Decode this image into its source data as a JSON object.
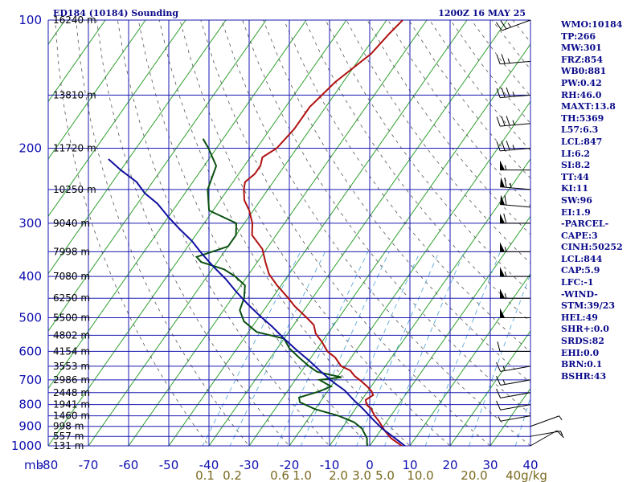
{
  "header": {
    "station": "ED184 (10184) Sounding",
    "time": "1200Z 16 MAY 25"
  },
  "chart_data": {
    "type": "line",
    "title": "ED184 (10184) Sounding",
    "subtitle": "1200Z 16 MAY 25",
    "xlabel": "",
    "ylabel": "mb",
    "xlim": [
      -80,
      40
    ],
    "ylim": [
      1000,
      100
    ],
    "y_scale": "log",
    "x_ticks": [
      "-80",
      "-70",
      "-60",
      "-50",
      "-40",
      "-30",
      "-20",
      "-10",
      "0",
      "10",
      "20",
      "30",
      "40"
    ],
    "pressure_levels": [
      {
        "p": 100,
        "label": "100",
        "height": "16240 m"
      },
      {
        "p": 150,
        "label": "",
        "height": "13810 m"
      },
      {
        "p": 200,
        "label": "200",
        "height": "11720 m"
      },
      {
        "p": 250,
        "label": "",
        "height": "10250 m"
      },
      {
        "p": 300,
        "label": "300",
        "height": "9040 m"
      },
      {
        "p": 350,
        "label": "",
        "height": "7998 m"
      },
      {
        "p": 400,
        "label": "400",
        "height": "7080 m"
      },
      {
        "p": 450,
        "label": "",
        "height": "6250 m"
      },
      {
        "p": 500,
        "label": "500",
        "height": "5500 m"
      },
      {
        "p": 550,
        "label": "",
        "height": "4802 m"
      },
      {
        "p": 600,
        "label": "600",
        "height": "4154 m"
      },
      {
        "p": 650,
        "label": "",
        "height": "3553 m"
      },
      {
        "p": 700,
        "label": "700",
        "height": "2986 m"
      },
      {
        "p": 750,
        "label": "",
        "height": "2448 m"
      },
      {
        "p": 800,
        "label": "800",
        "height": "1941 m"
      },
      {
        "p": 850,
        "label": "",
        "height": "1460 m"
      },
      {
        "p": 900,
        "label": "900",
        "height": "998 m"
      },
      {
        "p": 950,
        "label": "",
        "height": "557 m"
      },
      {
        "p": 1000,
        "label": "1000",
        "height": "131 m"
      }
    ],
    "mixing_ratio_labels": [
      "0.1",
      "0.2",
      "0.6",
      "1.0",
      "2.0",
      "3.0",
      "5.0",
      "10.0",
      "20.0",
      "40g/kg"
    ],
    "series": [
      {
        "name": "Temperature",
        "color": "#b01010",
        "points": [
          [
            9.2,
            1014
          ],
          [
            7,
            990
          ],
          [
            4,
            960
          ],
          [
            1,
            920
          ],
          [
            -2,
            875
          ],
          [
            -4,
            850
          ],
          [
            -6,
            820
          ],
          [
            -8,
            800
          ],
          [
            -9,
            780
          ],
          [
            -8,
            760
          ],
          [
            -9,
            745
          ],
          [
            -11,
            725
          ],
          [
            -14,
            700
          ],
          [
            -16,
            685
          ],
          [
            -18,
            665
          ],
          [
            -21,
            650
          ],
          [
            -24,
            620
          ],
          [
            -27,
            600
          ],
          [
            -30,
            570
          ],
          [
            -33,
            545
          ],
          [
            -35,
            520
          ],
          [
            -38,
            500
          ],
          [
            -43,
            470
          ],
          [
            -46,
            450
          ],
          [
            -51,
            420
          ],
          [
            -55,
            395
          ],
          [
            -58,
            370
          ],
          [
            -61,
            345
          ],
          [
            -66,
            320
          ],
          [
            -68,
            300
          ],
          [
            -71,
            280
          ],
          [
            -74,
            265
          ],
          [
            -76,
            250
          ],
          [
            -77,
            240
          ],
          [
            -76,
            230
          ],
          [
            -76,
            220
          ],
          [
            -77,
            210
          ],
          [
            -75,
            200
          ],
          [
            -74,
            180
          ],
          [
            -74,
            160
          ],
          [
            -72,
            140
          ],
          [
            -68,
            120
          ],
          [
            -67,
            108
          ],
          [
            -66,
            100
          ]
        ]
      },
      {
        "name": "Dewpoint",
        "color": "#0a5010",
        "points": [
          [
            0,
            1014
          ],
          [
            -1,
            990
          ],
          [
            -2,
            960
          ],
          [
            -5,
            910
          ],
          [
            -8,
            880
          ],
          [
            -13,
            850
          ],
          [
            -20,
            820
          ],
          [
            -25,
            790
          ],
          [
            -26,
            770
          ],
          [
            -22,
            745
          ],
          [
            -20,
            725
          ],
          [
            -24,
            700
          ],
          [
            -19,
            690
          ],
          [
            -26,
            670
          ],
          [
            -29,
            650
          ],
          [
            -33,
            620
          ],
          [
            -37,
            590
          ],
          [
            -40,
            560
          ],
          [
            -48,
            540
          ],
          [
            -53,
            510
          ],
          [
            -56,
            480
          ],
          [
            -57,
            450
          ],
          [
            -59,
            420
          ],
          [
            -63,
            400
          ],
          [
            -67,
            385
          ],
          [
            -74,
            370
          ],
          [
            -76,
            360
          ],
          [
            -70,
            340
          ],
          [
            -70,
            320
          ],
          [
            -72,
            300
          ],
          [
            -81,
            280
          ],
          [
            -85,
            250
          ],
          [
            -87,
            220
          ],
          [
            -92,
            200
          ],
          [
            -95,
            190
          ]
        ]
      },
      {
        "name": "Parcel",
        "color": "#1010a0",
        "points": [
          [
            10,
            1014
          ],
          [
            5,
            960
          ],
          [
            0,
            910
          ],
          [
            -4,
            865
          ],
          [
            -8,
            820
          ],
          [
            -12,
            780
          ],
          [
            -16,
            740
          ],
          [
            -20,
            710
          ],
          [
            -25,
            670
          ],
          [
            -30,
            630
          ],
          [
            -35,
            595
          ],
          [
            -40,
            560
          ],
          [
            -45,
            525
          ],
          [
            -50,
            495
          ],
          [
            -55,
            465
          ],
          [
            -60,
            435
          ],
          [
            -65,
            405
          ],
          [
            -70,
            380
          ],
          [
            -75,
            355
          ],
          [
            -80,
            330
          ],
          [
            -85,
            310
          ],
          [
            -90,
            290
          ],
          [
            -95,
            270
          ],
          [
            -100,
            255
          ],
          [
            -104,
            240
          ],
          [
            -110,
            225
          ],
          [
            -115,
            212
          ]
        ]
      }
    ],
    "wind_barbs": [
      {
        "p": 1000,
        "dir": 60,
        "spd": 10
      },
      {
        "p": 950,
        "dir": 80,
        "spd": 5
      },
      {
        "p": 900,
        "dir": 70,
        "spd": 5
      },
      {
        "p": 850,
        "dir": 260,
        "spd": 5
      },
      {
        "p": 800,
        "dir": 260,
        "spd": 10
      },
      {
        "p": 750,
        "dir": 260,
        "spd": 10
      },
      {
        "p": 700,
        "dir": 260,
        "spd": 15
      },
      {
        "p": 650,
        "dir": 260,
        "spd": 15
      },
      {
        "p": 600,
        "dir": 270,
        "spd": 10
      },
      {
        "p": 500,
        "dir": 270,
        "spd": 50
      },
      {
        "p": 450,
        "dir": 270,
        "spd": 55
      },
      {
        "p": 400,
        "dir": 270,
        "spd": 55
      },
      {
        "p": 350,
        "dir": 270,
        "spd": 55
      },
      {
        "p": 300,
        "dir": 270,
        "spd": 60
      },
      {
        "p": 275,
        "dir": 275,
        "spd": 60
      },
      {
        "p": 250,
        "dir": 275,
        "spd": 65
      },
      {
        "p": 225,
        "dir": 270,
        "spd": 55
      },
      {
        "p": 200,
        "dir": 265,
        "spd": 35
      },
      {
        "p": 175,
        "dir": 265,
        "spd": 35
      },
      {
        "p": 150,
        "dir": 265,
        "spd": 35
      },
      {
        "p": 125,
        "dir": 265,
        "spd": 25
      },
      {
        "p": 100,
        "dir": 250,
        "spd": 25
      }
    ]
  },
  "stats": [
    "WMO:10184",
    "TP:266",
    "MW:301",
    "FRZ:854",
    "WB0:881",
    "PW:0.42",
    "RH:46.0",
    "MAXT:13.8",
    "TH:5369",
    "L57:6.3",
    "LCL:847",
    "LI:6.2",
    "SI:8.2",
    "TT:44",
    "KI:11",
    "SW:96",
    "EI:1.9",
    "-PARCEL-",
    "CAPE:3",
    "CINH:50252",
    "LCL:844",
    "CAP:5.9",
    "LFC:-1",
    "-WIND-",
    "STM:39/23",
    "HEL:49",
    "SHR+:0.0",
    "SRDS:82",
    "EHI:0.0",
    "BRN:0.1",
    "BSHR:43"
  ]
}
